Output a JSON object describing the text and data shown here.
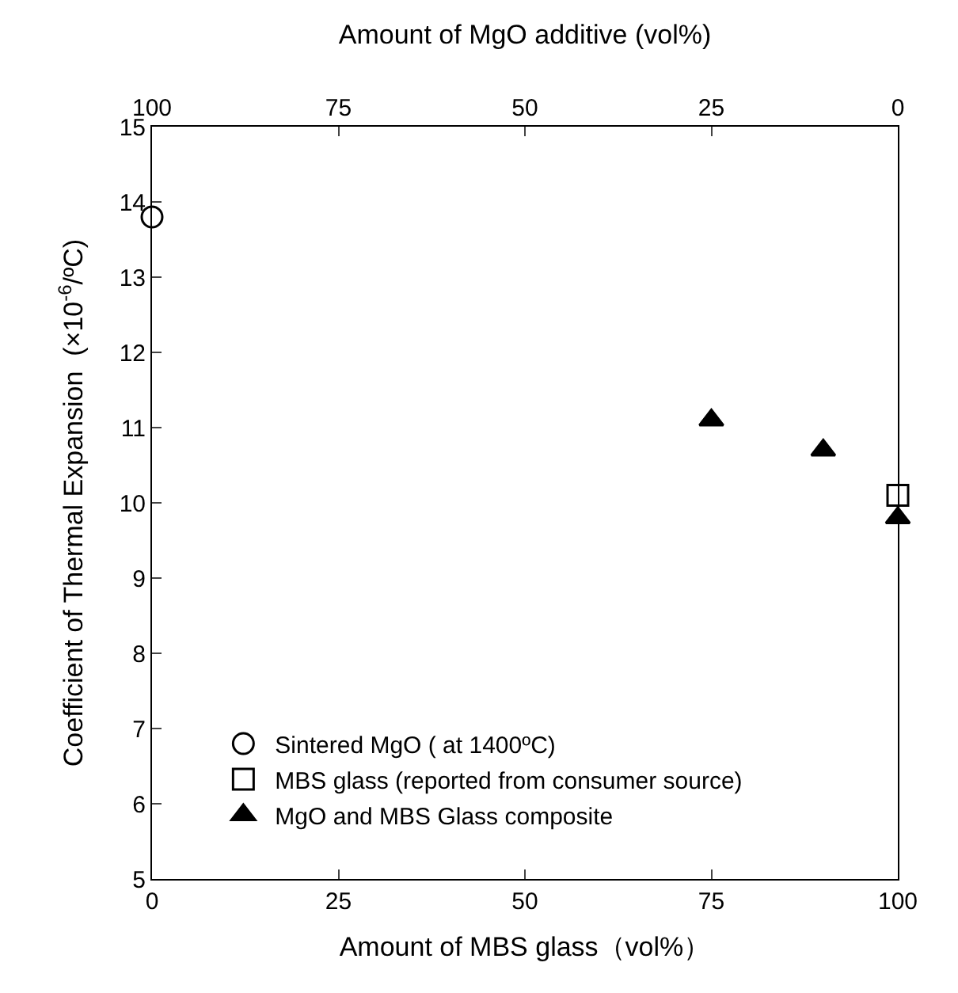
{
  "chart_data": {
    "type": "scatter",
    "xlabel": "Amount of MBS glass（vol%）",
    "ylabel": "Coefficient of Thermal Expansion  (×10$^{-6}$/ºC)",
    "x2label": "Amount of MgO additive (vol%)",
    "xlim": [
      0,
      100
    ],
    "xticks": [
      0,
      25,
      50,
      75,
      100
    ],
    "x2lim": [
      100,
      0
    ],
    "x2ticks": [
      100,
      75,
      50,
      25,
      0
    ],
    "ylim": [
      5,
      15
    ],
    "yticks": [
      5,
      6,
      7,
      8,
      9,
      10,
      11,
      12,
      13,
      14,
      15
    ],
    "grid": false,
    "legend": "bottom left",
    "series": [
      {
        "name": "Sintered MgO ( at 1400ºC)",
        "color": "#000000",
        "marker": "circle",
        "x": [
          0
        ],
        "values": [
          13.8
        ]
      },
      {
        "name": "MBS glass (reported from consumer source)",
        "color": "#000000",
        "marker": "square",
        "x": [
          100
        ],
        "values": [
          10.1
        ]
      },
      {
        "name": "MgO and MBS Glass composite",
        "color": "#000000",
        "marker": "triangle",
        "x": [
          75,
          90,
          100
        ],
        "values": [
          11.1,
          10.7,
          9.8
        ]
      }
    ]
  }
}
